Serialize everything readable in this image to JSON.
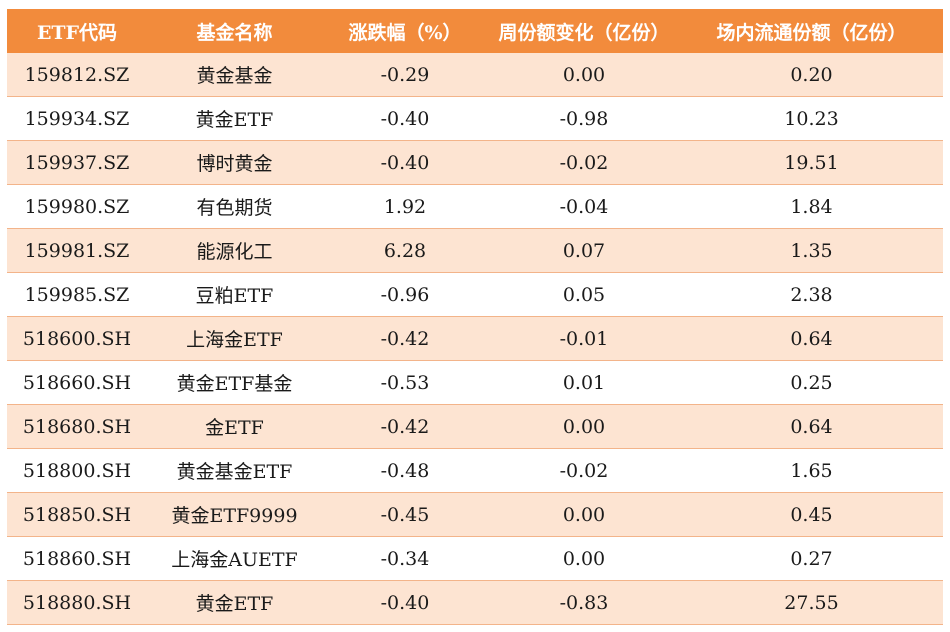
{
  "table": {
    "headers": [
      "ETF代码",
      "基金名称",
      "涨跌幅（%）",
      "周份额变化（亿份）",
      "场内流通份额（亿份）"
    ],
    "rows": [
      [
        "159812.SZ",
        "黄金基金",
        "-0.29",
        "0.00",
        "0.20"
      ],
      [
        "159934.SZ",
        "黄金ETF",
        "-0.40",
        "-0.98",
        "10.23"
      ],
      [
        "159937.SZ",
        "博时黄金",
        "-0.40",
        "-0.02",
        "19.51"
      ],
      [
        "159980.SZ",
        "有色期货",
        "1.92",
        "-0.04",
        "1.84"
      ],
      [
        "159981.SZ",
        "能源化工",
        "6.28",
        "0.07",
        "1.35"
      ],
      [
        "159985.SZ",
        "豆粕ETF",
        "-0.96",
        "0.05",
        "2.38"
      ],
      [
        "518600.SH",
        "上海金ETF",
        "-0.42",
        "-0.01",
        "0.64"
      ],
      [
        "518660.SH",
        "黄金ETF基金",
        "-0.53",
        "0.01",
        "0.25"
      ],
      [
        "518680.SH",
        "金ETF",
        "-0.42",
        "0.00",
        "0.64"
      ],
      [
        "518800.SH",
        "黄金基金ETF",
        "-0.48",
        "-0.02",
        "1.65"
      ],
      [
        "518850.SH",
        "黄金ETF9999",
        "-0.45",
        "0.00",
        "0.45"
      ],
      [
        "518860.SH",
        "上海金AUETF",
        "-0.34",
        "0.00",
        "0.27"
      ],
      [
        "518880.SH",
        "黄金ETF",
        "-0.40",
        "-0.83",
        "27.55"
      ]
    ]
  },
  "colors": {
    "header_bg": "#f28b3c",
    "header_text": "#ffffff",
    "row_alt_bg": "#fde4d2",
    "row_bg": "#ffffff",
    "row_border": "#f3b48a"
  }
}
